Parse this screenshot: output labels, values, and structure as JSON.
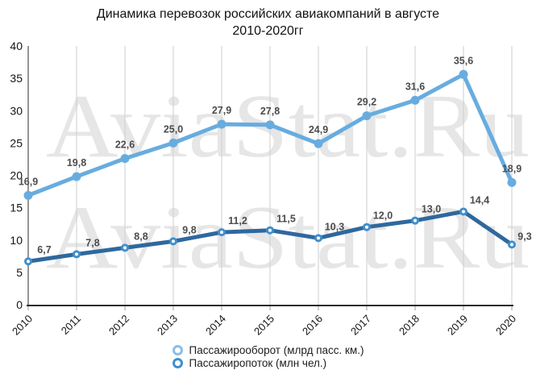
{
  "title_lines": [
    "Динамика перевозок российских авиакомпаний в августе",
    "2010-2020гг"
  ],
  "watermark": {
    "text": "AviaStat.Ru",
    "color": "#e6e6e6"
  },
  "chart_data": {
    "type": "line",
    "title": "Динамика перевозок российских авиакомпаний в августе 2010-2020гг",
    "categories": [
      "2010",
      "2011",
      "2012",
      "2013",
      "2014",
      "2015",
      "2016",
      "2017",
      "2018",
      "2019",
      "2020"
    ],
    "series": [
      {
        "name": "Пассажирооборот (млрд пасс. км.)",
        "color": "#68acdf",
        "legend_color": "#8abde8",
        "marker": "solid",
        "values": [
          16.9,
          19.8,
          22.6,
          25.0,
          27.9,
          27.8,
          24.9,
          29.2,
          31.6,
          35.6,
          18.9
        ]
      },
      {
        "name": "Пассажиропоток (млн чел.)",
        "color": "#2f689e",
        "legend_color": "#418fcb",
        "marker": "ring",
        "values": [
          6.7,
          7.8,
          8.8,
          9.8,
          11.2,
          11.5,
          10.3,
          12.0,
          13.0,
          14.4,
          9.3
        ]
      }
    ],
    "ylim": [
      0,
      40
    ],
    "yticks": [
      0,
      5,
      10,
      15,
      20,
      25,
      30,
      35,
      40
    ],
    "grid": "vertical",
    "legend_position": "bottom",
    "label_decimal_separator": ","
  }
}
